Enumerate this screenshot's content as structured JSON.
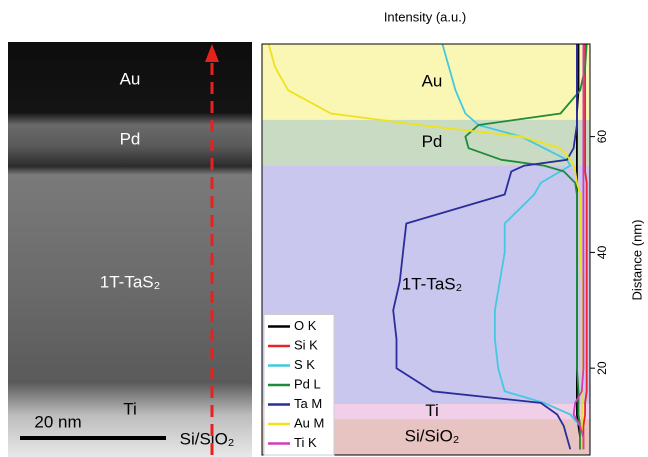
{
  "image": {
    "labels": [
      "Au",
      "Pd",
      "1T-TaS₂",
      "Ti",
      "Si/SiO₂"
    ],
    "scale_bar": "20 nm"
  },
  "chart_data": {
    "type": "line",
    "orientation": "vertical",
    "title": "Intensity (a.u.)",
    "xlabel": "Distance (nm)",
    "x": [
      6,
      8,
      10,
      12,
      14,
      16,
      20,
      25,
      30,
      35,
      40,
      45,
      50,
      52,
      54,
      55,
      56,
      58,
      60,
      62,
      64,
      68,
      72,
      76
    ],
    "xlim": [
      5,
      76
    ],
    "xticks": [
      20,
      40,
      60
    ],
    "ylim": [
      0,
      100
    ],
    "layers": [
      {
        "name": "Au",
        "from": 62.9,
        "to": 76,
        "color": "#faf6b4"
      },
      {
        "name": "Pd",
        "from": 55,
        "to": 62.9,
        "color": "#c9dcc3"
      },
      {
        "name": "1T-TaS₂",
        "from": 13.8,
        "to": 55,
        "color": "#c9c7ee"
      },
      {
        "name": "Ti",
        "from": 11.2,
        "to": 13.8,
        "color": "#f2cfe8"
      },
      {
        "name": "Si/SiO₂",
        "from": 5,
        "to": 11.2,
        "color": "#e7c3c2"
      }
    ],
    "series": [
      {
        "name": "O K",
        "color": "#000000",
        "values": [
          97,
          97,
          96.5,
          96,
          96,
          96,
          96,
          96,
          96,
          96,
          96,
          96,
          96,
          96,
          96,
          96,
          96,
          96,
          96,
          96,
          96,
          96.5,
          96.5,
          96.5
        ]
      },
      {
        "name": "Si K",
        "color": "#e8232a",
        "values": [
          98,
          98,
          98,
          98.5,
          98.5,
          99,
          99,
          99,
          99,
          99,
          99,
          99,
          99,
          99,
          98.5,
          98.5,
          98.5,
          98.5,
          98.5,
          98.5,
          98.5,
          98.5,
          98.5,
          98.5
        ]
      },
      {
        "name": "S K",
        "color": "#45c8e0",
        "values": [
          98,
          97.5,
          97,
          94,
          86,
          74,
          72,
          71,
          71,
          72.5,
          74,
          74,
          83,
          85,
          91,
          94,
          93,
          86,
          79,
          66,
          62,
          59,
          57,
          55
        ]
      },
      {
        "name": "Pd L",
        "color": "#1e8a3a",
        "values": [
          97,
          97,
          97,
          96.5,
          96.5,
          96.5,
          96,
          96,
          96,
          96,
          96,
          96,
          96,
          95.5,
          92,
          86,
          73,
          63,
          62,
          66,
          91,
          97,
          98.5,
          99
        ]
      },
      {
        "name": "Ta M",
        "color": "#2a2d9a",
        "values": [
          94,
          93,
          92,
          90,
          85,
          52,
          41,
          41,
          40,
          42,
          43,
          44,
          74,
          75,
          76,
          80,
          93,
          95,
          95.5,
          96,
          96,
          96,
          96,
          96
        ]
      },
      {
        "name": "Au M",
        "color": "#f0e21a",
        "values": [
          97.5,
          97.5,
          97.5,
          97.5,
          97.5,
          97.5,
          97.5,
          97.5,
          97.5,
          97.5,
          97,
          97,
          97,
          96,
          95.5,
          95,
          94,
          91,
          79,
          48,
          21,
          8,
          4,
          2
        ]
      },
      {
        "name": "Ti K",
        "color": "#d33bb8",
        "values": [
          98,
          98,
          97,
          95,
          95.5,
          97.5,
          98,
          98,
          98,
          98,
          98,
          98,
          98,
          98,
          98,
          98,
          98,
          98,
          98,
          98,
          98,
          98,
          98,
          98
        ]
      }
    ]
  }
}
